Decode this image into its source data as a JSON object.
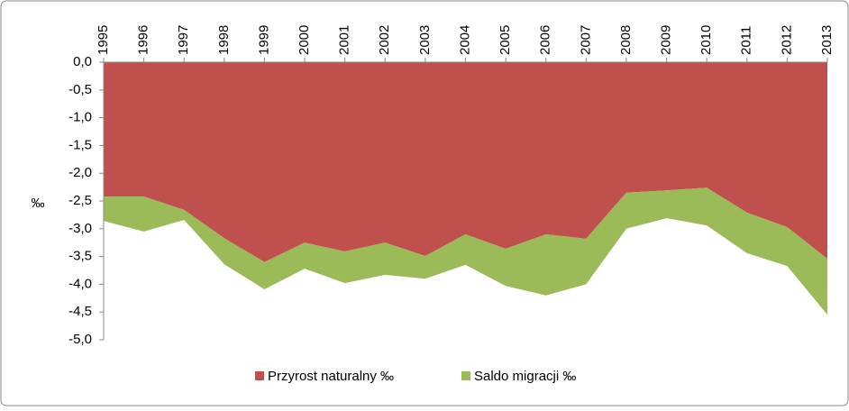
{
  "chart_data": {
    "type": "stacked-area",
    "categories": [
      "1995",
      "1996",
      "1997",
      "1998",
      "1999",
      "2000",
      "2001",
      "2002",
      "2003",
      "2004",
      "2005",
      "2006",
      "2007",
      "2008",
      "2009",
      "2010",
      "2011",
      "2012",
      "2013"
    ],
    "series": [
      {
        "name": "Przyrost naturalny ‰",
        "color": "#c0504d",
        "values": [
          -2.42,
          -2.42,
          -2.66,
          -3.17,
          -3.6,
          -3.25,
          -3.41,
          -3.25,
          -3.49,
          -3.1,
          -3.36,
          -3.1,
          -3.18,
          -2.35,
          -2.31,
          -2.26,
          -2.71,
          -2.97,
          -3.54
        ]
      },
      {
        "name": "Saldo migracji ‰",
        "color": "#9bbb59",
        "values": [
          -0.44,
          -0.63,
          -0.18,
          -0.47,
          -0.49,
          -0.47,
          -0.57,
          -0.58,
          -0.41,
          -0.55,
          -0.67,
          -1.1,
          -0.82,
          -0.65,
          -0.5,
          -0.68,
          -0.73,
          -0.7,
          -1.01
        ]
      }
    ],
    "y_label": "‰",
    "ylim": [
      0,
      -5
    ],
    "yticks": [
      {
        "value": 0,
        "label": "0,0"
      },
      {
        "value": -0.5,
        "label": "-0,5"
      },
      {
        "value": -1,
        "label": "-1,0"
      },
      {
        "value": -1.5,
        "label": "-1,5"
      },
      {
        "value": -2,
        "label": "-2,0"
      },
      {
        "value": -2.5,
        "label": "-2,5"
      },
      {
        "value": -3,
        "label": "-3,0"
      },
      {
        "value": -3.5,
        "label": "-3,5"
      },
      {
        "value": -4,
        "label": "-4,0"
      },
      {
        "value": -4.5,
        "label": "-4,5"
      },
      {
        "value": -5,
        "label": "-5,0"
      }
    ],
    "legend": "bottom"
  }
}
